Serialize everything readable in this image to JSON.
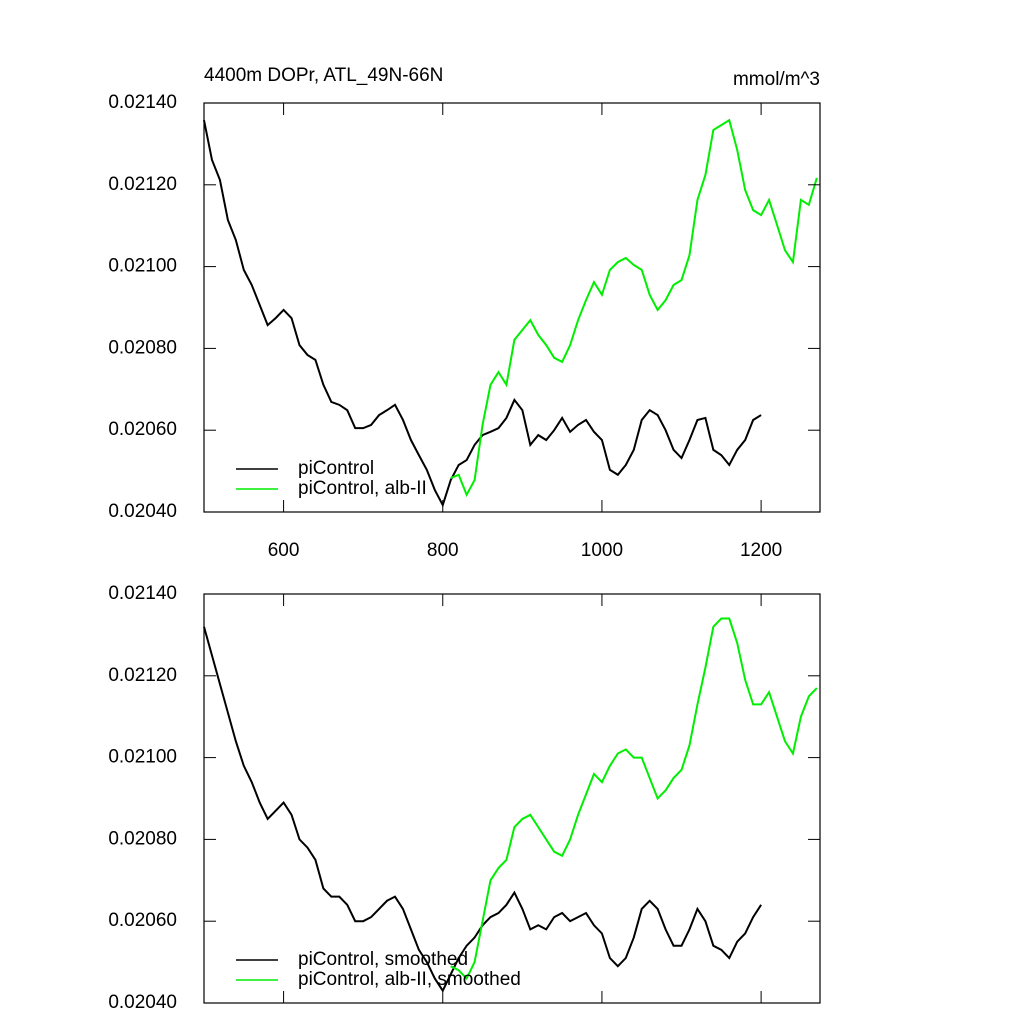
{
  "chart_data": [
    {
      "type": "line",
      "title": "4400m DOPr, ATL_49N-66N",
      "units": "mmol/m^3",
      "xlim": [
        500,
        1274
      ],
      "ylim": [
        0.0204,
        0.0214
      ],
      "xticks": [
        600,
        800,
        1000,
        1200
      ],
      "yticks": [
        {
          "value": 0.0204,
          "label": "0.02040"
        },
        {
          "value": 0.0206,
          "label": "0.02060"
        },
        {
          "value": 0.0208,
          "label": "0.02080"
        },
        {
          "value": 0.021,
          "label": "0.02100"
        },
        {
          "value": 0.0212,
          "label": "0.02120"
        },
        {
          "value": 0.0214,
          "label": "0.02140"
        }
      ],
      "series": [
        {
          "name": "piControl",
          "color": "#000000",
          "x": [
            500,
            510,
            520,
            530,
            540,
            550,
            560,
            570,
            580,
            590,
            600,
            610,
            620,
            630,
            640,
            650,
            660,
            670,
            680,
            690,
            700,
            710,
            720,
            730,
            740,
            750,
            760,
            770,
            780,
            790,
            800,
            810,
            820,
            830,
            840,
            850,
            860,
            870,
            880,
            890,
            900,
            910,
            920,
            930,
            940,
            950,
            960,
            970,
            980,
            990,
            1000,
            1010,
            1020,
            1030,
            1040,
            1050,
            1060,
            1070,
            1080,
            1090,
            1100,
            1110,
            1120,
            1130,
            1140,
            1150,
            1160,
            1170,
            1180,
            1190,
            1200
          ],
          "values": [
            0.021358,
            0.021261,
            0.021212,
            0.021114,
            0.021065,
            0.020992,
            0.020955,
            0.020906,
            0.020857,
            0.020874,
            0.020894,
            0.020874,
            0.020808,
            0.020784,
            0.020772,
            0.020711,
            0.020669,
            0.020662,
            0.020649,
            0.020605,
            0.020605,
            0.020613,
            0.020637,
            0.020649,
            0.020662,
            0.020625,
            0.020576,
            0.020539,
            0.020503,
            0.020454,
            0.020417,
            0.020478,
            0.020515,
            0.020527,
            0.020564,
            0.020588,
            0.020596,
            0.020605,
            0.02063,
            0.020674,
            0.020649,
            0.020564,
            0.020588,
            0.020576,
            0.0206,
            0.02063,
            0.020596,
            0.020613,
            0.020625,
            0.020596,
            0.020576,
            0.020503,
            0.020491,
            0.020515,
            0.020552,
            0.020625,
            0.020649,
            0.020637,
            0.0206,
            0.020552,
            0.020532,
            0.020576,
            0.020625,
            0.02063,
            0.020552,
            0.020539,
            0.020515,
            0.020552,
            0.020576,
            0.020625,
            0.020637
          ]
        },
        {
          "name": "piControl, alb-II",
          "color": "#00ee00",
          "x": [
            810,
            820,
            830,
            840,
            850,
            860,
            870,
            880,
            890,
            900,
            910,
            920,
            930,
            940,
            950,
            960,
            970,
            980,
            990,
            1000,
            1010,
            1020,
            1030,
            1040,
            1050,
            1060,
            1070,
            1080,
            1090,
            1100,
            1110,
            1120,
            1130,
            1140,
            1150,
            1160,
            1170,
            1180,
            1190,
            1200,
            1210,
            1220,
            1230,
            1240,
            1250,
            1260,
            1270
          ],
          "values": [
            0.020483,
            0.020491,
            0.020442,
            0.020478,
            0.020613,
            0.020711,
            0.020742,
            0.020711,
            0.020821,
            0.020845,
            0.020869,
            0.020833,
            0.020808,
            0.020777,
            0.020767,
            0.020808,
            0.020869,
            0.020918,
            0.020962,
            0.020931,
            0.020992,
            0.021011,
            0.021021,
            0.021004,
            0.020992,
            0.020931,
            0.020894,
            0.020918,
            0.020955,
            0.020967,
            0.021028,
            0.021163,
            0.021224,
            0.021334,
            0.021346,
            0.021358,
            0.021285,
            0.021187,
            0.021138,
            0.021126,
            0.021163,
            0.021102,
            0.02104,
            0.021011,
            0.021163,
            0.021151,
            0.021217
          ]
        }
      ]
    },
    {
      "type": "line",
      "xlim": [
        500,
        1274
      ],
      "ylim": [
        0.0204,
        0.0214
      ],
      "yticks": [
        {
          "value": 0.0204,
          "label": "0.02040"
        },
        {
          "value": 0.0206,
          "label": "0.02060"
        },
        {
          "value": 0.0208,
          "label": "0.02080"
        },
        {
          "value": 0.021,
          "label": "0.02100"
        },
        {
          "value": 0.0212,
          "label": "0.02120"
        },
        {
          "value": 0.0214,
          "label": "0.02140"
        }
      ],
      "series": [
        {
          "name": "piControl, smoothed",
          "color": "#000000",
          "x": [
            500,
            510,
            520,
            530,
            540,
            550,
            560,
            570,
            580,
            590,
            600,
            610,
            620,
            630,
            640,
            650,
            660,
            670,
            680,
            690,
            700,
            710,
            720,
            730,
            740,
            750,
            760,
            770,
            780,
            790,
            800,
            810,
            820,
            830,
            840,
            850,
            860,
            870,
            880,
            890,
            900,
            910,
            920,
            930,
            940,
            950,
            960,
            970,
            980,
            990,
            1000,
            1010,
            1020,
            1030,
            1040,
            1050,
            1060,
            1070,
            1080,
            1090,
            1100,
            1110,
            1120,
            1130,
            1140,
            1150,
            1160,
            1170,
            1180,
            1190,
            1200
          ],
          "values": [
            0.02132,
            0.02125,
            0.02118,
            0.02111,
            0.02104,
            0.02098,
            0.02094,
            0.02089,
            0.02085,
            0.02087,
            0.02089,
            0.02086,
            0.0208,
            0.02078,
            0.02075,
            0.02068,
            0.02066,
            0.02066,
            0.02064,
            0.0206,
            0.0206,
            0.02061,
            0.02063,
            0.02065,
            0.02066,
            0.02063,
            0.02058,
            0.02053,
            0.0205,
            0.02046,
            0.02043,
            0.02047,
            0.02051,
            0.02054,
            0.02056,
            0.02059,
            0.02061,
            0.02062,
            0.02064,
            0.02067,
            0.02063,
            0.02058,
            0.02059,
            0.02058,
            0.02061,
            0.02062,
            0.0206,
            0.02061,
            0.02062,
            0.02059,
            0.02057,
            0.02051,
            0.02049,
            0.02051,
            0.02056,
            0.02063,
            0.02065,
            0.02063,
            0.02058,
            0.02054,
            0.02054,
            0.02058,
            0.02063,
            0.0206,
            0.02054,
            0.02053,
            0.02051,
            0.02055,
            0.02057,
            0.02061,
            0.02064
          ]
        },
        {
          "name": "piControl, alb-II, smoothed",
          "color": "#00ee00",
          "x": [
            810,
            820,
            830,
            840,
            850,
            860,
            870,
            880,
            890,
            900,
            910,
            920,
            930,
            940,
            950,
            960,
            970,
            980,
            990,
            1000,
            1010,
            1020,
            1030,
            1040,
            1050,
            1060,
            1070,
            1080,
            1090,
            1100,
            1110,
            1120,
            1130,
            1140,
            1150,
            1160,
            1170,
            1180,
            1190,
            1200,
            1210,
            1220,
            1230,
            1240,
            1250,
            1260,
            1270
          ],
          "values": [
            0.02049,
            0.02048,
            0.02046,
            0.0205,
            0.0206,
            0.0207,
            0.02073,
            0.02075,
            0.02083,
            0.02085,
            0.02086,
            0.02083,
            0.0208,
            0.02077,
            0.02076,
            0.0208,
            0.02086,
            0.02091,
            0.02096,
            0.02094,
            0.02098,
            0.02101,
            0.02102,
            0.021,
            0.021,
            0.02095,
            0.0209,
            0.02092,
            0.02095,
            0.02097,
            0.02103,
            0.02113,
            0.02122,
            0.02132,
            0.02134,
            0.02134,
            0.02128,
            0.02119,
            0.02113,
            0.02113,
            0.02116,
            0.0211,
            0.02104,
            0.02101,
            0.0211,
            0.02115,
            0.02117
          ]
        }
      ]
    }
  ]
}
